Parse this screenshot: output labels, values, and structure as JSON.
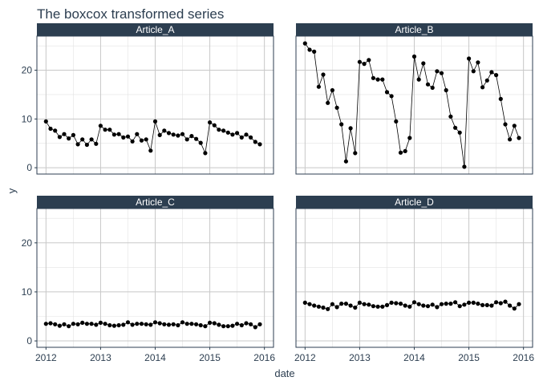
{
  "chart_data": {
    "type": "line",
    "title": "The boxcox transformed series",
    "xlabel": "date",
    "ylabel": "y",
    "x_ticks": [
      "2012",
      "2013",
      "2014",
      "2015",
      "2016"
    ],
    "y_ticks": [
      0,
      10,
      20
    ],
    "xlim": [
      "2012-01",
      "2016-01"
    ],
    "ylim": [
      -1.3,
      27.0
    ],
    "grid": true,
    "facets": [
      "Article_A",
      "Article_B",
      "Article_C",
      "Article_D"
    ],
    "x": [
      "2012-01",
      "2012-02",
      "2012-03",
      "2012-04",
      "2012-05",
      "2012-06",
      "2012-07",
      "2012-08",
      "2012-09",
      "2012-10",
      "2012-11",
      "2012-12",
      "2013-01",
      "2013-02",
      "2013-03",
      "2013-04",
      "2013-05",
      "2013-06",
      "2013-07",
      "2013-08",
      "2013-09",
      "2013-10",
      "2013-11",
      "2013-12",
      "2014-01",
      "2014-02",
      "2014-03",
      "2014-04",
      "2014-05",
      "2014-06",
      "2014-07",
      "2014-08",
      "2014-09",
      "2014-10",
      "2014-11",
      "2014-12",
      "2015-01",
      "2015-02",
      "2015-03",
      "2015-04",
      "2015-05",
      "2015-06",
      "2015-07",
      "2015-08",
      "2015-09",
      "2015-10",
      "2015-11",
      "2015-12"
    ],
    "series": [
      {
        "name": "Article_A",
        "values": [
          9.5,
          8.0,
          7.6,
          6.3,
          6.9,
          6.0,
          6.7,
          4.8,
          5.8,
          4.7,
          5.8,
          4.9,
          8.6,
          7.8,
          7.8,
          6.8,
          6.9,
          6.2,
          6.4,
          5.4,
          6.9,
          5.6,
          5.8,
          3.5,
          9.5,
          6.7,
          7.6,
          7.1,
          6.8,
          6.6,
          6.9,
          5.8,
          6.5,
          5.9,
          5.1,
          3.0,
          9.3,
          8.7,
          7.8,
          7.6,
          7.2,
          6.8,
          7.1,
          6.2,
          6.8,
          6.2,
          5.3,
          4.8
        ]
      },
      {
        "name": "Article_B",
        "values": [
          25.5,
          24.2,
          23.8,
          16.6,
          19.1,
          13.3,
          15.9,
          12.3,
          8.9,
          1.3,
          8.1,
          3.0,
          21.7,
          21.3,
          22.1,
          18.4,
          18.1,
          18.1,
          15.5,
          14.7,
          9.5,
          3.1,
          3.4,
          6.1,
          22.8,
          18.1,
          21.4,
          17.1,
          16.4,
          19.8,
          19.4,
          15.9,
          10.5,
          8.2,
          7.2,
          0.2,
          22.4,
          19.8,
          21.6,
          16.5,
          17.9,
          19.6,
          19.0,
          14.1,
          8.9,
          5.8,
          8.6,
          6.1
        ]
      },
      {
        "name": "Article_C",
        "values": [
          3.5,
          3.6,
          3.4,
          3.1,
          3.4,
          3.0,
          3.5,
          3.4,
          3.7,
          3.5,
          3.5,
          3.3,
          3.7,
          3.5,
          3.2,
          3.1,
          3.2,
          3.3,
          3.8,
          3.3,
          3.5,
          3.5,
          3.4,
          3.3,
          3.8,
          3.6,
          3.4,
          3.3,
          3.4,
          3.2,
          3.8,
          3.5,
          3.5,
          3.4,
          3.2,
          3.0,
          3.7,
          3.6,
          3.3,
          3.0,
          3.0,
          3.1,
          3.5,
          3.2,
          3.6,
          3.4,
          2.8,
          3.4
        ]
      },
      {
        "name": "Article_D",
        "values": [
          7.8,
          7.5,
          7.2,
          7.0,
          6.8,
          6.5,
          7.5,
          6.9,
          7.6,
          7.6,
          7.2,
          6.8,
          7.8,
          7.5,
          7.4,
          7.1,
          7.0,
          7.0,
          7.3,
          7.8,
          7.7,
          7.6,
          7.2,
          7.0,
          7.9,
          7.5,
          7.2,
          7.1,
          7.4,
          6.9,
          7.5,
          7.6,
          7.6,
          7.9,
          7.1,
          7.4,
          7.8,
          7.8,
          7.6,
          7.3,
          7.3,
          7.2,
          7.9,
          7.7,
          8.0,
          7.2,
          6.6,
          7.5
        ]
      }
    ]
  }
}
